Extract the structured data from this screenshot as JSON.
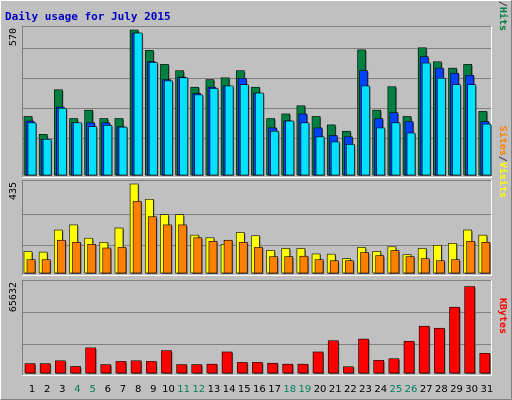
{
  "title": "Daily usage for July 2015",
  "colors": {
    "background": "#c0c0c0",
    "hits": "#008040",
    "files": "#0040ff",
    "pages": "#00e0ff",
    "visits": "#ffff00",
    "sites": "#ff8000",
    "kbytes": "#ff0000",
    "weekday": "#000000",
    "weekend": "#00805c"
  },
  "chart_data": [
    {
      "type": "bar",
      "panel": "hits-files-pages",
      "scale_label": "570",
      "side_labels": [
        "Pages",
        "/",
        "Files",
        "/",
        "Hits"
      ],
      "categories": [
        "1",
        "2",
        "3",
        "4",
        "5",
        "6",
        "7",
        "8",
        "9",
        "10",
        "11",
        "12",
        "13",
        "14",
        "15",
        "16",
        "17",
        "18",
        "19",
        "20",
        "21",
        "22",
        "23",
        "24",
        "25",
        "26",
        "27",
        "28",
        "29",
        "30",
        "31"
      ],
      "weekend_days": [
        4,
        5,
        11,
        12,
        18,
        19,
        25,
        26
      ],
      "ylim": [
        0,
        570
      ],
      "series": [
        {
          "name": "Hits",
          "values": [
            230,
            160,
            335,
            222,
            255,
            222,
            222,
            570,
            490,
            435,
            410,
            345,
            375,
            382,
            410,
            345,
            222,
            240,
            272,
            230,
            197,
            172,
            492,
            255,
            347,
            230,
            500,
            445,
            420,
            435,
            250
          ]
        },
        {
          "name": "Files",
          "values": [
            212,
            140,
            267,
            205,
            205,
            205,
            190,
            558,
            445,
            375,
            385,
            320,
            345,
            350,
            380,
            322,
            185,
            213,
            240,
            185,
            155,
            150,
            410,
            222,
            245,
            210,
            465,
            420,
            400,
            392,
            210
          ]
        },
        {
          "name": "Pages",
          "values": [
            205,
            140,
            262,
            205,
            190,
            195,
            188,
            558,
            442,
            370,
            382,
            315,
            340,
            350,
            355,
            322,
            172,
            212,
            205,
            150,
            130,
            120,
            350,
            185,
            205,
            165,
            440,
            380,
            355,
            355,
            200
          ]
        }
      ]
    },
    {
      "type": "bar",
      "panel": "visits-sites",
      "scale_label": "435",
      "side_labels": [
        "Sites",
        "/",
        "Visits"
      ],
      "categories": [
        "1",
        "2",
        "3",
        "4",
        "5",
        "6",
        "7",
        "8",
        "9",
        "10",
        "11",
        "12",
        "13",
        "14",
        "15",
        "16",
        "17",
        "18",
        "19",
        "20",
        "21",
        "22",
        "23",
        "24",
        "25",
        "26",
        "27",
        "28",
        "29",
        "30",
        "31"
      ],
      "ylim": [
        0,
        435
      ],
      "series": [
        {
          "name": "Visits",
          "values": [
            105,
            102,
            210,
            235,
            170,
            150,
            220,
            435,
            360,
            285,
            285,
            185,
            172,
            140,
            198,
            182,
            110,
            120,
            120,
            93,
            92,
            70,
            125,
            105,
            128,
            90,
            120,
            135,
            145,
            210,
            185
          ]
        },
        {
          "name": "Sites",
          "values": [
            65,
            65,
            160,
            150,
            140,
            122,
            125,
            350,
            275,
            235,
            235,
            172,
            155,
            160,
            150,
            125,
            80,
            80,
            82,
            65,
            60,
            60,
            100,
            85,
            110,
            80,
            70,
            60,
            65,
            155,
            150
          ]
        }
      ]
    },
    {
      "type": "bar",
      "panel": "kbytes",
      "scale_label": "65632",
      "side_labels": [
        "KBytes"
      ],
      "categories": [
        "1",
        "2",
        "3",
        "4",
        "5",
        "6",
        "7",
        "8",
        "9",
        "10",
        "11",
        "12",
        "13",
        "14",
        "15",
        "16",
        "17",
        "18",
        "19",
        "20",
        "21",
        "22",
        "23",
        "24",
        "25",
        "26",
        "27",
        "28",
        "29",
        "30",
        "31"
      ],
      "ylim": [
        0,
        65632
      ],
      "series": [
        {
          "name": "KBytes",
          "values": [
            6900,
            6900,
            9000,
            4800,
            18500,
            6200,
            8500,
            9000,
            8500,
            16500,
            6200,
            6200,
            6500,
            15500,
            7800,
            7800,
            7200,
            6500,
            6500,
            15500,
            23800,
            4600,
            25000,
            9300,
            10500,
            23400,
            34500,
            33000,
            48500,
            63700,
            14500
          ]
        }
      ]
    }
  ]
}
